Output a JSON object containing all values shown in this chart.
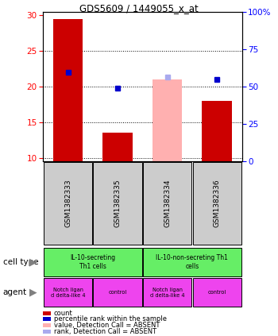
{
  "title": "GDS5609 / 1449055_x_at",
  "samples": [
    "GSM1382333",
    "GSM1382335",
    "GSM1382334",
    "GSM1382336"
  ],
  "counts": [
    29.5,
    13.5,
    null,
    18.0
  ],
  "counts_absent": [
    null,
    null,
    21.0,
    null
  ],
  "percentile_ranks": [
    22.0,
    19.8,
    null,
    21.0
  ],
  "percentile_ranks_absent": [
    null,
    null,
    21.3,
    null
  ],
  "ylim_left": [
    9.5,
    30.5
  ],
  "ylim_right": [
    0,
    100
  ],
  "yticks_left": [
    10,
    15,
    20,
    25,
    30
  ],
  "yticks_right": [
    0,
    25,
    50,
    75,
    100
  ],
  "ytick_labels_right": [
    "0",
    "25",
    "50",
    "75",
    "100%"
  ],
  "bar_color": "#cc0000",
  "bar_color_absent": "#ffb0b0",
  "dot_color": "#0000cc",
  "dot_color_absent": "#aaaaee",
  "sample_box_color": "#cccccc",
  "cell_type_color": "#66ee66",
  "agent_color": "#ee44ee",
  "legend_items": [
    {
      "color": "#cc0000",
      "label": "count"
    },
    {
      "color": "#0000cc",
      "label": "percentile rank within the sample"
    },
    {
      "color": "#ffb0b0",
      "label": "value, Detection Call = ABSENT"
    },
    {
      "color": "#aaaaee",
      "label": "rank, Detection Call = ABSENT"
    }
  ]
}
